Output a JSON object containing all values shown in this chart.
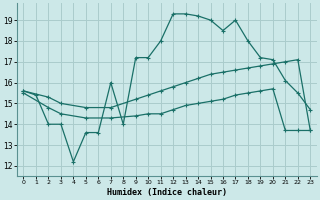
{
  "xlabel": "Humidex (Indice chaleur)",
  "xlim": [
    -0.5,
    23.5
  ],
  "ylim": [
    11.5,
    19.8
  ],
  "yticks": [
    12,
    13,
    14,
    15,
    16,
    17,
    18,
    19
  ],
  "xticks": [
    0,
    1,
    2,
    3,
    4,
    5,
    6,
    7,
    8,
    9,
    10,
    11,
    12,
    13,
    14,
    15,
    16,
    17,
    18,
    19,
    20,
    21,
    22,
    23
  ],
  "bg_color": "#cce8e8",
  "grid_color": "#aacccc",
  "line_color": "#1a7068",
  "line_width": 0.9,
  "marker_size": 2.5,
  "series": [
    {
      "x": [
        0,
        1,
        2,
        3,
        4,
        5,
        6,
        7,
        8,
        9,
        10,
        11,
        12,
        13,
        14,
        15,
        16,
        17,
        18,
        19,
        20,
        21,
        22,
        23
      ],
      "y": [
        15.6,
        15.4,
        14.0,
        14.0,
        12.2,
        13.6,
        13.6,
        16.0,
        14.0,
        17.2,
        17.2,
        18.0,
        19.3,
        19.3,
        19.2,
        19.0,
        18.5,
        19.0,
        18.0,
        17.2,
        17.1,
        16.1,
        15.5,
        14.7
      ]
    },
    {
      "x": [
        0,
        2,
        3,
        5,
        7,
        9,
        10,
        11,
        12,
        13,
        14,
        15,
        16,
        17,
        18,
        19,
        20,
        21,
        22,
        23
      ],
      "y": [
        15.6,
        15.3,
        15.0,
        14.8,
        14.8,
        15.2,
        15.4,
        15.6,
        15.8,
        16.0,
        16.2,
        16.4,
        16.5,
        16.6,
        16.7,
        16.8,
        16.9,
        17.0,
        17.1,
        13.7
      ]
    },
    {
      "x": [
        0,
        2,
        3,
        5,
        7,
        9,
        10,
        11,
        12,
        13,
        14,
        15,
        16,
        17,
        18,
        19,
        20,
        21,
        22,
        23
      ],
      "y": [
        15.5,
        14.8,
        14.5,
        14.3,
        14.3,
        14.4,
        14.5,
        14.5,
        14.7,
        14.9,
        15.0,
        15.1,
        15.2,
        15.4,
        15.5,
        15.6,
        15.7,
        13.7,
        13.7,
        13.7
      ]
    }
  ]
}
